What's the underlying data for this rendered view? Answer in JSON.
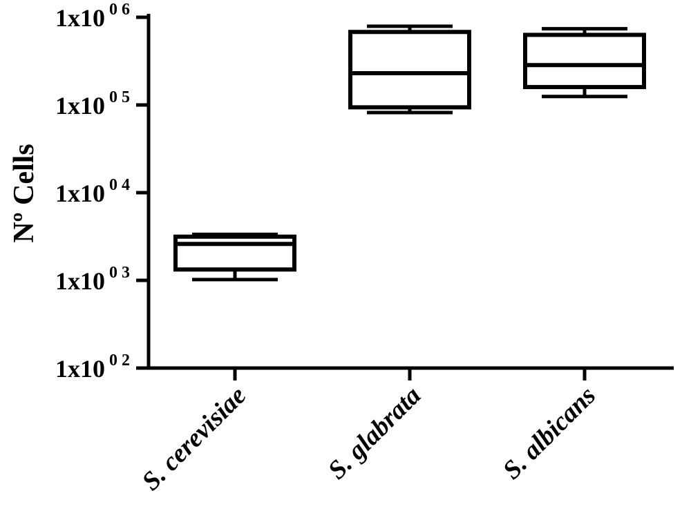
{
  "chart_data": {
    "type": "box",
    "ylabel": "Nº Cells",
    "yscale": "log",
    "ylim": [
      100,
      1000000
    ],
    "y_ticks": [
      {
        "value": 100,
        "base": "1x10",
        "exp": "0 2"
      },
      {
        "value": 1000,
        "base": "1x10",
        "exp": "0 3"
      },
      {
        "value": 10000,
        "base": "1x10",
        "exp": "0 4"
      },
      {
        "value": 100000,
        "base": "1x10",
        "exp": "0 5"
      },
      {
        "value": 1000000,
        "base": "1x10",
        "exp": "0 6"
      }
    ],
    "categories": [
      "S. cerevisiae",
      "S. glabrata",
      "S. albicans"
    ],
    "boxes": [
      {
        "min": 1020,
        "q1": 1330,
        "median": 2600,
        "q3": 3150,
        "max": 3350
      },
      {
        "min": 82000,
        "q1": 94000,
        "median": 230000,
        "q3": 680000,
        "max": 790000
      },
      {
        "min": 125000,
        "q1": 160000,
        "median": 285000,
        "q3": 630000,
        "max": 740000
      }
    ],
    "grid": false,
    "color": "#000000"
  }
}
